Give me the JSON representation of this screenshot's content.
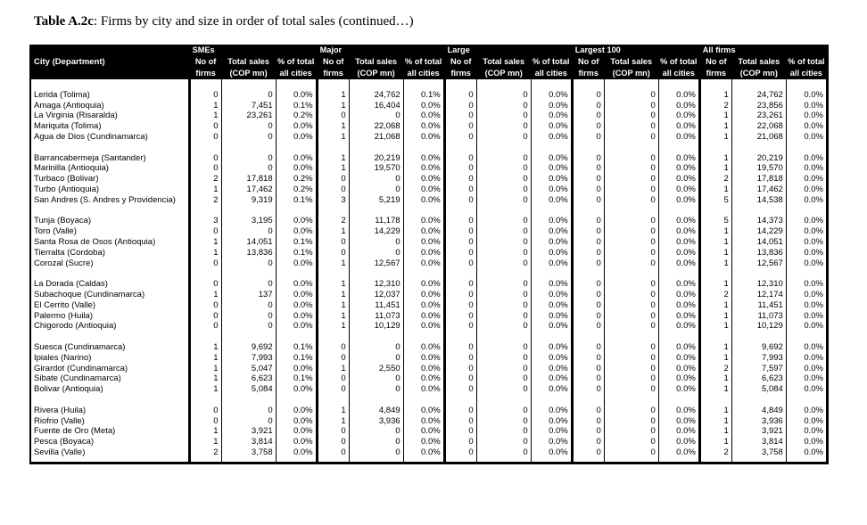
{
  "page": {
    "title_bold": "Table A.2c",
    "title_rest": ": Firms by city and size in order of total sales (continued…)"
  },
  "table": {
    "city_header": "City (Department)",
    "groups": [
      "SMEs",
      "Major",
      "Large",
      "Largest 100",
      "All firms"
    ],
    "subheaders": {
      "no_l1": "No of",
      "no_l2": "firms",
      "sales_l1": "Total sales",
      "sales_l2": "(COP mn)",
      "pct_l1": "% of total",
      "pct_l2": "all cities"
    },
    "blocks": [
      [
        {
          "city": "Lerida (Tolima)",
          "values": [
            "0",
            "0",
            "0.0%",
            "1",
            "24,762",
            "0.1%",
            "0",
            "0",
            "0.0%",
            "0",
            "0",
            "0.0%",
            "1",
            "24,762",
            "0.0%"
          ]
        },
        {
          "city": "Amaga (Antioquia)",
          "values": [
            "1",
            "7,451",
            "0.1%",
            "1",
            "16,404",
            "0.0%",
            "0",
            "0",
            "0.0%",
            "0",
            "0",
            "0.0%",
            "2",
            "23,856",
            "0.0%"
          ]
        },
        {
          "city": "La Virginia (Risaralda)",
          "values": [
            "1",
            "23,261",
            "0.2%",
            "0",
            "0",
            "0.0%",
            "0",
            "0",
            "0.0%",
            "0",
            "0",
            "0.0%",
            "1",
            "23,261",
            "0.0%"
          ]
        },
        {
          "city": "Mariquita (Tolima)",
          "values": [
            "0",
            "0",
            "0.0%",
            "1",
            "22,068",
            "0.0%",
            "0",
            "0",
            "0.0%",
            "0",
            "0",
            "0.0%",
            "1",
            "22,068",
            "0.0%"
          ]
        },
        {
          "city": "Agua de Dios (Cundinamarca)",
          "values": [
            "0",
            "0",
            "0.0%",
            "1",
            "21,068",
            "0.0%",
            "0",
            "0",
            "0.0%",
            "0",
            "0",
            "0.0%",
            "1",
            "21,068",
            "0.0%"
          ]
        }
      ],
      [
        {
          "city": "Barrancabermeja (Santander)",
          "values": [
            "0",
            "0",
            "0.0%",
            "1",
            "20,219",
            "0.0%",
            "0",
            "0",
            "0.0%",
            "0",
            "0",
            "0.0%",
            "1",
            "20,219",
            "0.0%"
          ]
        },
        {
          "city": "Marinilla (Antioquia)",
          "values": [
            "0",
            "0",
            "0.0%",
            "1",
            "19,570",
            "0.0%",
            "0",
            "0",
            "0.0%",
            "0",
            "0",
            "0.0%",
            "1",
            "19,570",
            "0.0%"
          ]
        },
        {
          "city": "Turbaco (Bolivar)",
          "values": [
            "2",
            "17,818",
            "0.2%",
            "0",
            "0",
            "0.0%",
            "0",
            "0",
            "0.0%",
            "0",
            "0",
            "0.0%",
            "2",
            "17,818",
            "0.0%"
          ]
        },
        {
          "city": "Turbo (Antioquia)",
          "values": [
            "1",
            "17,462",
            "0.2%",
            "0",
            "0",
            "0.0%",
            "0",
            "0",
            "0.0%",
            "0",
            "0",
            "0.0%",
            "1",
            "17,462",
            "0.0%"
          ]
        },
        {
          "city": "San Andres (S. Andres y Providencia)",
          "values": [
            "2",
            "9,319",
            "0.1%",
            "3",
            "5,219",
            "0.0%",
            "0",
            "0",
            "0.0%",
            "0",
            "0",
            "0.0%",
            "5",
            "14,538",
            "0.0%"
          ]
        }
      ],
      [
        {
          "city": "Tunja (Boyaca)",
          "values": [
            "3",
            "3,195",
            "0.0%",
            "2",
            "11,178",
            "0.0%",
            "0",
            "0",
            "0.0%",
            "0",
            "0",
            "0.0%",
            "5",
            "14,373",
            "0.0%"
          ]
        },
        {
          "city": "Toro (Valle)",
          "values": [
            "0",
            "0",
            "0.0%",
            "1",
            "14,229",
            "0.0%",
            "0",
            "0",
            "0.0%",
            "0",
            "0",
            "0.0%",
            "1",
            "14,229",
            "0.0%"
          ]
        },
        {
          "city": "Santa Rosa de Osos (Antioquia)",
          "values": [
            "1",
            "14,051",
            "0.1%",
            "0",
            "0",
            "0.0%",
            "0",
            "0",
            "0.0%",
            "0",
            "0",
            "0.0%",
            "1",
            "14,051",
            "0.0%"
          ]
        },
        {
          "city": "Tierralta (Cordoba)",
          "values": [
            "1",
            "13,836",
            "0.1%",
            "0",
            "0",
            "0.0%",
            "0",
            "0",
            "0.0%",
            "0",
            "0",
            "0.0%",
            "1",
            "13,836",
            "0.0%"
          ]
        },
        {
          "city": "Corozal (Sucre)",
          "values": [
            "0",
            "0",
            "0.0%",
            "1",
            "12,567",
            "0.0%",
            "0",
            "0",
            "0.0%",
            "0",
            "0",
            "0.0%",
            "1",
            "12,567",
            "0.0%"
          ]
        }
      ],
      [
        {
          "city": "La Dorada (Caldas)",
          "values": [
            "0",
            "0",
            "0.0%",
            "1",
            "12,310",
            "0.0%",
            "0",
            "0",
            "0.0%",
            "0",
            "0",
            "0.0%",
            "1",
            "12,310",
            "0.0%"
          ]
        },
        {
          "city": "Subachoque (Cundinamarca)",
          "values": [
            "1",
            "137",
            "0.0%",
            "1",
            "12,037",
            "0.0%",
            "0",
            "0",
            "0.0%",
            "0",
            "0",
            "0.0%",
            "2",
            "12,174",
            "0.0%"
          ]
        },
        {
          "city": "El Cerrito (Valle)",
          "values": [
            "0",
            "0",
            "0.0%",
            "1",
            "11,451",
            "0.0%",
            "0",
            "0",
            "0.0%",
            "0",
            "0",
            "0.0%",
            "1",
            "11,451",
            "0.0%"
          ]
        },
        {
          "city": "Palermo (Huila)",
          "values": [
            "0",
            "0",
            "0.0%",
            "1",
            "11,073",
            "0.0%",
            "0",
            "0",
            "0.0%",
            "0",
            "0",
            "0.0%",
            "1",
            "11,073",
            "0.0%"
          ]
        },
        {
          "city": "Chigorodo (Antioquia)",
          "values": [
            "0",
            "0",
            "0.0%",
            "1",
            "10,129",
            "0.0%",
            "0",
            "0",
            "0.0%",
            "0",
            "0",
            "0.0%",
            "1",
            "10,129",
            "0.0%"
          ]
        }
      ],
      [
        {
          "city": "Suesca (Cundinamarca)",
          "values": [
            "1",
            "9,692",
            "0.1%",
            "0",
            "0",
            "0.0%",
            "0",
            "0",
            "0.0%",
            "0",
            "0",
            "0.0%",
            "1",
            "9,692",
            "0.0%"
          ]
        },
        {
          "city": "Ipiales (Narino)",
          "values": [
            "1",
            "7,993",
            "0.1%",
            "0",
            "0",
            "0.0%",
            "0",
            "0",
            "0.0%",
            "0",
            "0",
            "0.0%",
            "1",
            "7,993",
            "0.0%"
          ]
        },
        {
          "city": "Girardot (Cundinamarca)",
          "values": [
            "1",
            "5,047",
            "0.0%",
            "1",
            "2,550",
            "0.0%",
            "0",
            "0",
            "0.0%",
            "0",
            "0",
            "0.0%",
            "2",
            "7,597",
            "0.0%"
          ]
        },
        {
          "city": "Sibate (Cundinamarca)",
          "values": [
            "1",
            "6,623",
            "0.1%",
            "0",
            "0",
            "0.0%",
            "0",
            "0",
            "0.0%",
            "0",
            "0",
            "0.0%",
            "1",
            "6,623",
            "0.0%"
          ]
        },
        {
          "city": "Bolivar (Antioquia)",
          "values": [
            "1",
            "5,084",
            "0.0%",
            "0",
            "0",
            "0.0%",
            "0",
            "0",
            "0.0%",
            "0",
            "0",
            "0.0%",
            "1",
            "5,084",
            "0.0%"
          ]
        }
      ],
      [
        {
          "city": "Rivera (Huila)",
          "values": [
            "0",
            "0",
            "0.0%",
            "1",
            "4,849",
            "0.0%",
            "0",
            "0",
            "0.0%",
            "0",
            "0",
            "0.0%",
            "1",
            "4,849",
            "0.0%"
          ]
        },
        {
          "city": "Riofrio (Valle)",
          "values": [
            "0",
            "0",
            "0.0%",
            "1",
            "3,936",
            "0.0%",
            "0",
            "0",
            "0.0%",
            "0",
            "0",
            "0.0%",
            "1",
            "3,936",
            "0.0%"
          ]
        },
        {
          "city": "Fuente de Oro (Meta)",
          "values": [
            "1",
            "3,921",
            "0.0%",
            "0",
            "0",
            "0.0%",
            "0",
            "0",
            "0.0%",
            "0",
            "0",
            "0.0%",
            "1",
            "3,921",
            "0.0%"
          ]
        },
        {
          "city": "Pesca (Boyaca)",
          "values": [
            "1",
            "3,814",
            "0.0%",
            "0",
            "0",
            "0.0%",
            "0",
            "0",
            "0.0%",
            "0",
            "0",
            "0.0%",
            "1",
            "3,814",
            "0.0%"
          ]
        },
        {
          "city": "Sevilla (Valle)",
          "values": [
            "2",
            "3,758",
            "0.0%",
            "0",
            "0",
            "0.0%",
            "0",
            "0",
            "0.0%",
            "0",
            "0",
            "0.0%",
            "2",
            "3,758",
            "0.0%"
          ]
        }
      ]
    ]
  }
}
